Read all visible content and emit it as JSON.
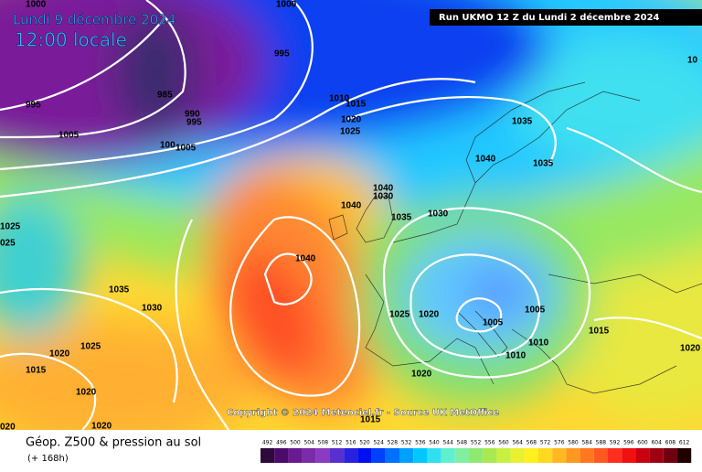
{
  "header": {
    "date": "Lundi 9 décembre 2024",
    "time": "12:00 locale",
    "run": "Run UKMO 12 Z du Lundi 2 décembre 2024"
  },
  "copyright": "Copyright © 2024 Meteociel.fr - Source UK MetOffice",
  "footer": {
    "title": "Géop. Z500 & pression au sol",
    "lead": "(+ 168h)"
  },
  "scale": {
    "labels": [
      492,
      496,
      500,
      504,
      508,
      512,
      516,
      520,
      524,
      528,
      532,
      536,
      540,
      544,
      548,
      552,
      556,
      560,
      564,
      568,
      572,
      576,
      580,
      584,
      588,
      592,
      596,
      600,
      604,
      608,
      612
    ],
    "colors": [
      "#2d0a3a",
      "#4b0b6b",
      "#6a1a90",
      "#7b2aa8",
      "#8a3bbf",
      "#5a2fd0",
      "#2a20e0",
      "#0010f0",
      "#0040ff",
      "#0070ff",
      "#00a0ff",
      "#00c8ff",
      "#30e0f0",
      "#60f0d0",
      "#80f0a0",
      "#90e870",
      "#a8e850",
      "#c8f040",
      "#e8f030",
      "#fff020",
      "#ffd820",
      "#ffb820",
      "#ff9820",
      "#ff7820",
      "#ff5820",
      "#ff3020",
      "#f01010",
      "#c80010",
      "#a00010",
      "#700010",
      "#200000"
    ]
  },
  "isobar_labels": [
    "1000",
    "1000",
    "995",
    "995",
    "1005",
    "985",
    "990",
    "995",
    "100",
    "1005",
    "1010",
    "1015",
    "1020",
    "1025",
    "1035",
    "1040",
    "1035",
    "1040",
    "1030",
    "1040",
    "1035",
    "1030",
    "1040",
    "1025",
    "025",
    "1035",
    "1030",
    "1025",
    "1020",
    "1005",
    "1005",
    "1020",
    "1025",
    "1015",
    "1020",
    "1020",
    "1015",
    "1010",
    "1010",
    "1015",
    "1020",
    "020",
    "1020",
    "10"
  ]
}
